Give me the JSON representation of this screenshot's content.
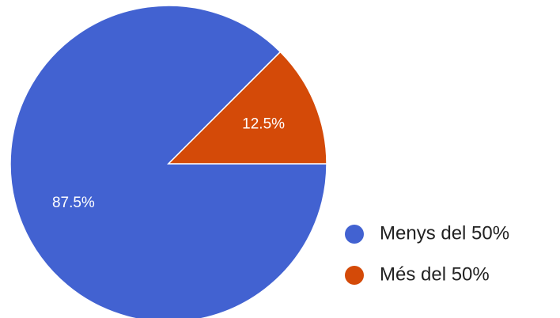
{
  "chart_data": {
    "type": "pie",
    "categories": [
      "Menys del 50%",
      "Més del 50%"
    ],
    "values": [
      87.5,
      12.5
    ],
    "value_labels": [
      "87.5%",
      "12.5%"
    ],
    "colors": [
      "#4262d1",
      "#d44a08"
    ],
    "legend": "right"
  }
}
